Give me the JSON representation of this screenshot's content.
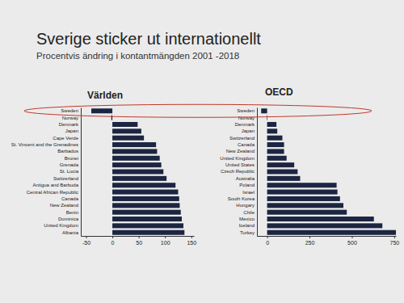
{
  "title": "Sverige sticker ut internationellt",
  "subtitle": "Procentvis ändring i kontantmängden 2001 -2018",
  "chart_data": [
    {
      "type": "bar",
      "orientation": "horizontal",
      "title": "Världen",
      "color": "#1c2541",
      "categories": [
        "Sweden",
        "Norway",
        "Denmark",
        "Japan",
        "Cape Verde",
        "St. Vincent and the Grenadines",
        "Barbados",
        "Brunei",
        "Grenada",
        "St. Lucia",
        "Switzerland",
        "Antigua and Barbuda",
        "Central African Republic",
        "Canada",
        "New Zealand",
        "Benin",
        "Dominica",
        "United Kingdom",
        "Albania"
      ],
      "values": [
        -40,
        -2,
        48,
        55,
        60,
        83,
        85,
        90,
        93,
        97,
        103,
        120,
        125,
        127,
        128,
        130,
        132,
        135,
        137
      ],
      "xlim": [
        -60,
        155
      ],
      "xticks": [
        -50,
        0,
        50,
        100,
        150
      ]
    },
    {
      "type": "bar",
      "orientation": "horizontal",
      "title": "OECD",
      "color": "#1c2541",
      "categories": [
        "Sweden",
        "Norway",
        "Denmark",
        "Japan",
        "Switzerland",
        "Canada",
        "New Zealand",
        "United Kingdom",
        "United States",
        "Czech Republic",
        "Australia",
        "Poland",
        "Israel",
        "South Korea",
        "Hungary",
        "Chile",
        "Mexico",
        "Iceland",
        "Turkey"
      ],
      "values": [
        -35,
        -3,
        55,
        60,
        90,
        100,
        100,
        115,
        160,
        180,
        195,
        410,
        415,
        430,
        450,
        470,
        630,
        680,
        760
      ],
      "xlim": [
        -60,
        760
      ],
      "xticks": [
        0,
        250,
        500,
        750
      ]
    }
  ]
}
